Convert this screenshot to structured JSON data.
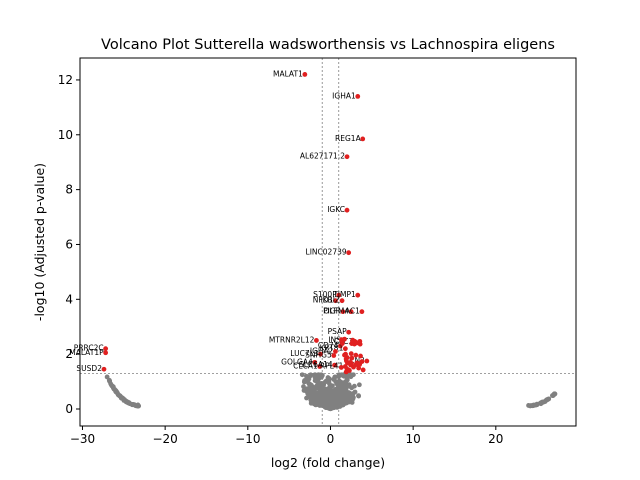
{
  "chart_data": {
    "type": "scatter",
    "title": "Volcano Plot Sutterella wadsworthensis vs Lachnospira eligens",
    "xlabel": "log2 (fold change)",
    "ylabel": "-log10 (Adjusted p-value)",
    "xlim": [
      -30.3,
      29.7
    ],
    "ylim": [
      -0.62,
      12.8
    ],
    "xticks": [
      -30,
      -20,
      -10,
      0,
      10,
      20
    ],
    "yticks": [
      0,
      2,
      4,
      6,
      8,
      10,
      12
    ],
    "grid": false,
    "thresholds": {
      "log2fc": [
        -1,
        1
      ],
      "neg_log10_padj": 1.3
    },
    "colors": {
      "significant": "#e02020",
      "not_significant": "#808080",
      "threshold_line": "#808080"
    },
    "labeled_genes": [
      {
        "name": "MALAT1",
        "x": -3.1,
        "y": 12.2
      },
      {
        "name": "IGHA1",
        "x": 3.3,
        "y": 11.4
      },
      {
        "name": "REG1A",
        "x": 3.9,
        "y": 9.85
      },
      {
        "name": "AL627171.2",
        "x": 2.0,
        "y": 9.2
      },
      {
        "name": "IGKC",
        "x": 2.0,
        "y": 7.25
      },
      {
        "name": "LINC02739",
        "x": 2.2,
        "y": 5.7
      },
      {
        "name": "S100P",
        "x": 1.0,
        "y": 4.15
      },
      {
        "name": "TIMP1",
        "x": 3.3,
        "y": 4.15
      },
      {
        "name": "ID1",
        "x": 0.6,
        "y": 3.95
      },
      {
        "name": "NFKBIZ",
        "x": 1.4,
        "y": 3.95
      },
      {
        "name": "PIGR",
        "x": 1.5,
        "y": 3.55
      },
      {
        "name": "OLFM4",
        "x": 2.5,
        "y": 3.55
      },
      {
        "name": "AC1",
        "x": 3.8,
        "y": 3.55
      },
      {
        "name": "PSAP",
        "x": 2.2,
        "y": 2.8
      },
      {
        "name": "MTRNR2L12",
        "x": -1.7,
        "y": 2.5
      },
      {
        "name": "INS",
        "x": 1.5,
        "y": 2.5
      },
      {
        "name": "CLC3",
        "x": 3.0,
        "y": 2.45
      },
      {
        "name": "CD74",
        "x": 1.2,
        "y": 2.3
      },
      {
        "name": "KRT81",
        "x": 1.8,
        "y": 2.2
      },
      {
        "name": "IGHA2",
        "x": 0.6,
        "y": 2.1
      },
      {
        "name": "LUC7L3",
        "x": -1.2,
        "y": 2.0
      },
      {
        "name": "SNHG5",
        "x": 0.4,
        "y": 1.95
      },
      {
        "name": "LCN2",
        "x": 4.4,
        "y": 1.75
      },
      {
        "name": "GOLGA4",
        "x": -1.9,
        "y": 1.7
      },
      {
        "name": "CLCA1",
        "x": -1.3,
        "y": 1.55
      },
      {
        "name": "SLC6A14",
        "x": 0.5,
        "y": 1.6
      },
      {
        "name": "RPL41",
        "x": 1.8,
        "y": 1.55
      },
      {
        "name": "PRRC2C",
        "x": -27.2,
        "y": 2.2
      },
      {
        "name": "MALAT1P",
        "x": -27.2,
        "y": 2.05
      },
      {
        "name": "SUSD2",
        "x": -27.4,
        "y": 1.45
      }
    ]
  }
}
